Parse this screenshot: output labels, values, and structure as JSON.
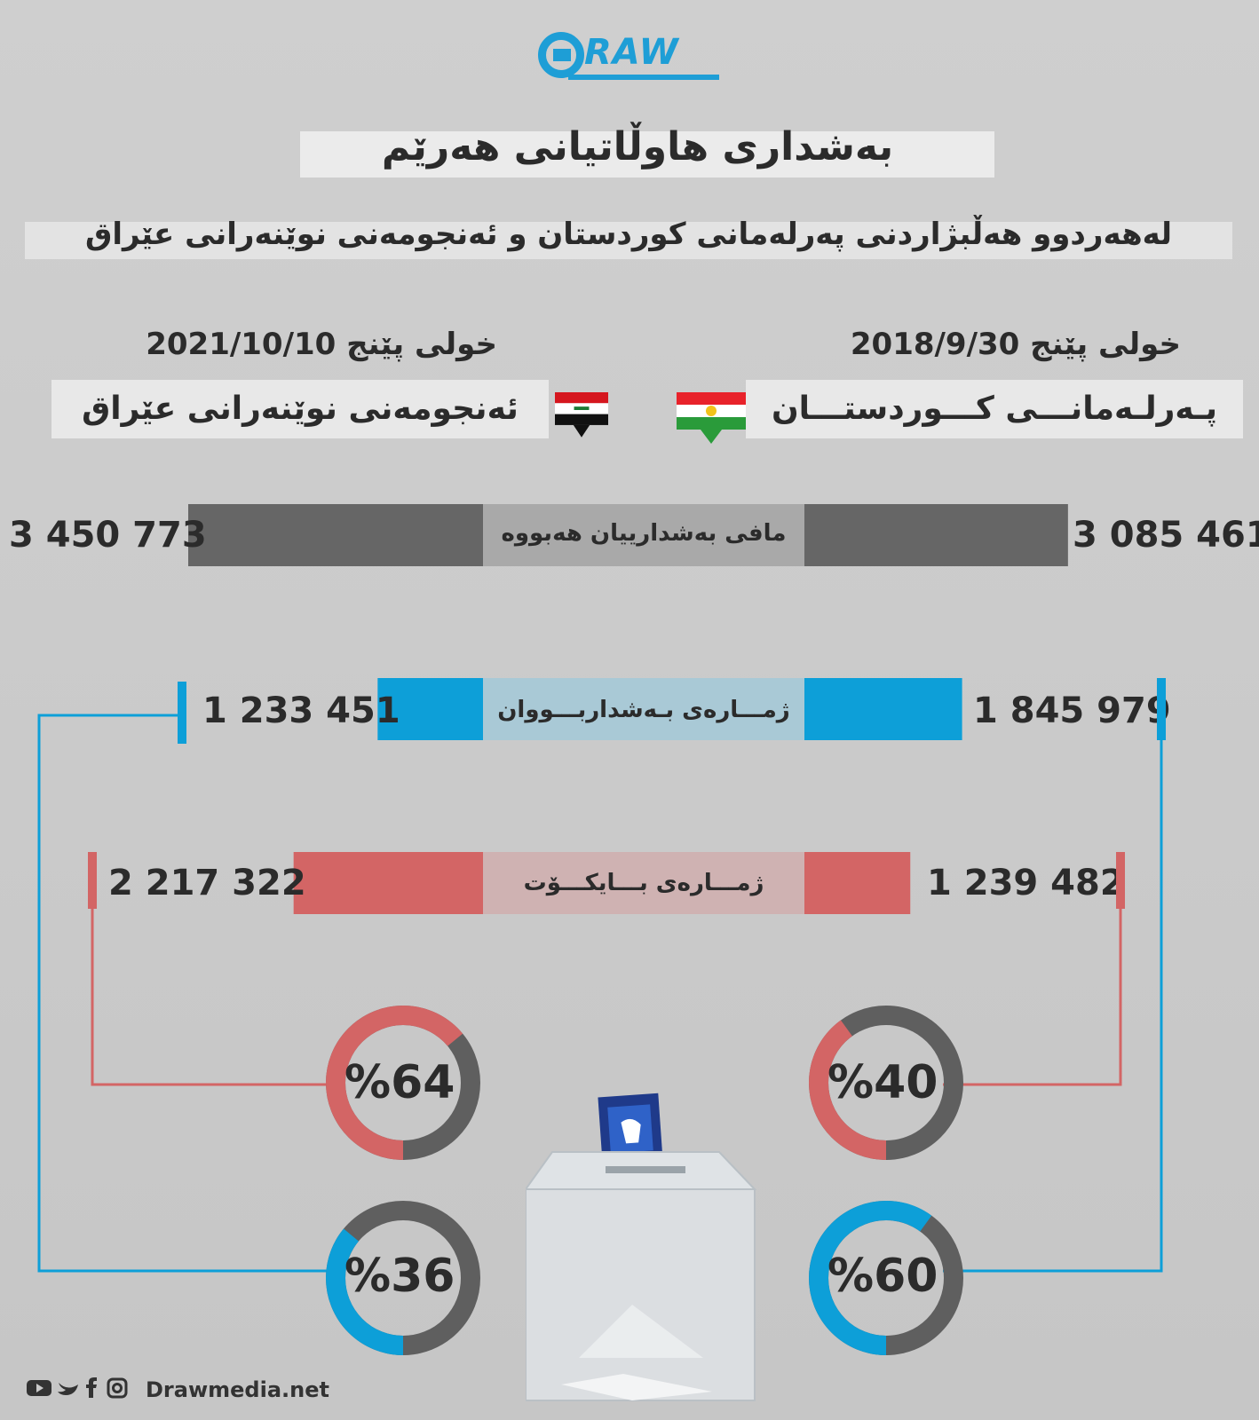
{
  "brand": {
    "logo_text": "RAW",
    "site": "Drawmedia.net",
    "social_icons": [
      "youtube-icon",
      "twitter-icon",
      "facebook-icon",
      "instagram-icon"
    ]
  },
  "title": "بەشداری هاوڵاتیانی هەرێم",
  "subtitle": "لەهەردوو هەڵبژاردنی پەرلەمانی کوردستان و  ئەنجومەنی نوێنەرانی عێراق",
  "elections": {
    "kurdistan": {
      "date_label": "خولی پێنج  2018/9/30",
      "name": "پـەرلـەمانـــی کـــوردستـــان",
      "flag_colors": [
        "#e8222a",
        "#ffffff",
        "#2a9b3a",
        "#f2c31b"
      ]
    },
    "iraq": {
      "date_label": "خولی پێنج  2021/10/10",
      "name": "ئەنجومەنی نوێنەرانی عێراق",
      "flag_colors": [
        "#d5161e",
        "#ffffff",
        "#111111",
        "#1a7a34"
      ]
    }
  },
  "labels": {
    "eligible": "مافی بەشدارییان هەبووە",
    "participants": "ژمـــارەی بـەشداربـــووان",
    "boycott": "ژمـــارەی بـــایکـــۆت"
  },
  "colors": {
    "eligible": "#666666",
    "participants": "#0d9fd8",
    "boycott": "#d36565",
    "ring_gray": "#5f5f5f"
  },
  "chart_data": {
    "type": "bar",
    "categories": [
      "مافی بەشدارییان هەبووە",
      "ژمـــارەی بـەشداربـــووان",
      "ژمـــارەی بـــایکـــۆت"
    ],
    "series": [
      {
        "name": "پـەرلـەمانـــی کـــوردستـــان",
        "values": [
          3085461,
          1845979,
          1239482
        ],
        "display": [
          "3 085 461",
          "1 845 979",
          "1 239 482"
        ]
      },
      {
        "name": "ئەنجومەنی نوێنەرانی عێراق",
        "values": [
          3450773,
          1233451,
          2217322
        ],
        "display": [
          "3 450 773",
          "1 233 451",
          "2 217 322"
        ]
      }
    ],
    "percentages": {
      "kurdistan": {
        "participation": 60,
        "boycott": 40,
        "participation_label": "%60",
        "boycott_label": "%40"
      },
      "iraq": {
        "participation": 36,
        "boycott": 64,
        "participation_label": "%36",
        "boycott_label": "%64"
      }
    }
  }
}
